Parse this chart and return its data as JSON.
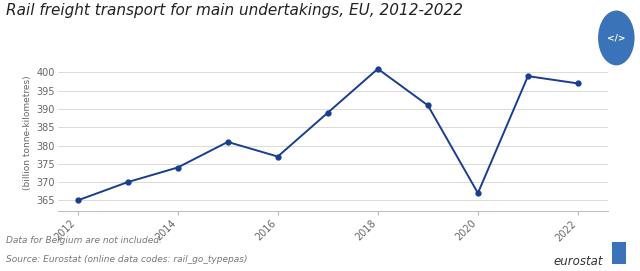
{
  "title": "Rail freight transport for main undertakings, EU, 2012-2022",
  "years": [
    2012,
    2013,
    2014,
    2015,
    2016,
    2017,
    2018,
    2019,
    2020,
    2021,
    2022
  ],
  "values": [
    365,
    370,
    374,
    381,
    377,
    389,
    401,
    391,
    367,
    399,
    397
  ],
  "ylabel": "(billion tonne-kilometres)",
  "ylim": [
    362,
    405
  ],
  "yticks": [
    365,
    370,
    375,
    380,
    385,
    390,
    395,
    400
  ],
  "xticks": [
    2012,
    2014,
    2016,
    2018,
    2020,
    2022
  ],
  "line_color": "#1a3e8f",
  "marker": "o",
  "marker_size": 3.5,
  "line_width": 1.4,
  "bg_color": "#ffffff",
  "grid_color": "#cccccc",
  "footnote1": "Data for Belgium are not included.",
  "footnote2": "Source: Eurostat (online data codes: rail_go_typepas)",
  "eurostat_text": "eurostat",
  "title_fontsize": 11,
  "axis_fontsize": 7,
  "footnote_fontsize": 6.5,
  "ylabel_fontsize": 6.5
}
